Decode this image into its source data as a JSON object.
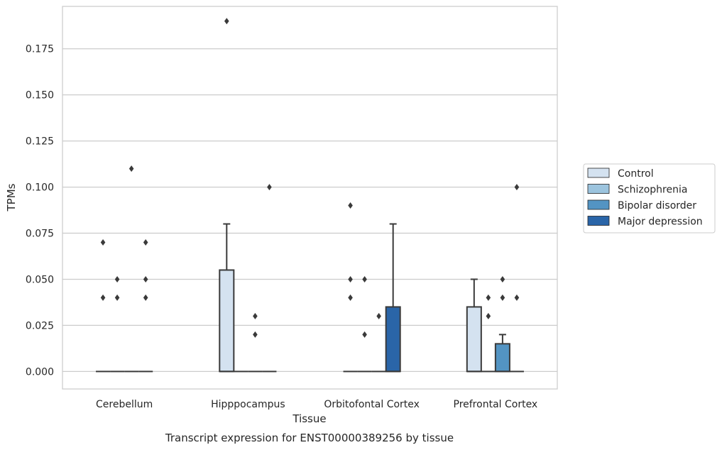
{
  "chart_data": {
    "type": "box",
    "title": "",
    "caption": "Transcript expression for ENST00000389256 by tissue",
    "xlabel": "Tissue",
    "ylabel": "TPMs",
    "ylim": [
      -0.0095,
      0.198
    ],
    "yticks": [
      0.0,
      0.025,
      0.05,
      0.075,
      0.1,
      0.125,
      0.15,
      0.175
    ],
    "ytick_labels": [
      "0.000",
      "0.025",
      "0.050",
      "0.075",
      "0.100",
      "0.125",
      "0.150",
      "0.175"
    ],
    "grid": "y",
    "legend_position": "right",
    "categories": [
      "Cerebellum",
      "Hipppocampus",
      "Orbitofontal Cortex",
      "Prefrontal Cortex"
    ],
    "series": [
      {
        "name": "Control",
        "color": "#d4e2f0"
      },
      {
        "name": "Schizophrenia",
        "color": "#9cc4de"
      },
      {
        "name": "Bipolar disorder",
        "color": "#5394c3"
      },
      {
        "name": "Major depression",
        "color": "#2a65a8"
      }
    ],
    "boxes": [
      {
        "category": "Cerebellum",
        "series": "Control",
        "q1": 0,
        "median": 0,
        "q3": 0,
        "whisker_low": 0,
        "whisker_high": 0,
        "outliers": [
          0.04,
          0.07
        ]
      },
      {
        "category": "Cerebellum",
        "series": "Schizophrenia",
        "q1": 0,
        "median": 0,
        "q3": 0,
        "whisker_low": 0,
        "whisker_high": 0,
        "outliers": [
          0.04,
          0.05
        ]
      },
      {
        "category": "Cerebellum",
        "series": "Bipolar disorder",
        "q1": 0,
        "median": 0,
        "q3": 0,
        "whisker_low": 0,
        "whisker_high": 0,
        "outliers": [
          0.11
        ]
      },
      {
        "category": "Cerebellum",
        "series": "Major depression",
        "q1": 0,
        "median": 0,
        "q3": 0,
        "whisker_low": 0,
        "whisker_high": 0,
        "outliers": [
          0.04,
          0.05,
          0.07
        ]
      },
      {
        "category": "Hipppocampus",
        "series": "Control",
        "q1": 0,
        "median": 0,
        "q3": 0.055,
        "whisker_low": 0,
        "whisker_high": 0.08,
        "outliers": [
          0.19
        ]
      },
      {
        "category": "Hipppocampus",
        "series": "Schizophrenia",
        "q1": 0,
        "median": 0,
        "q3": 0,
        "whisker_low": 0,
        "whisker_high": 0,
        "outliers": []
      },
      {
        "category": "Hipppocampus",
        "series": "Bipolar disorder",
        "q1": 0,
        "median": 0,
        "q3": 0,
        "whisker_low": 0,
        "whisker_high": 0,
        "outliers": [
          0.02,
          0.03
        ]
      },
      {
        "category": "Hipppocampus",
        "series": "Major depression",
        "q1": 0,
        "median": 0,
        "q3": 0,
        "whisker_low": 0,
        "whisker_high": 0,
        "outliers": [
          0.1
        ]
      },
      {
        "category": "Orbitofontal Cortex",
        "series": "Control",
        "q1": 0,
        "median": 0,
        "q3": 0,
        "whisker_low": 0,
        "whisker_high": 0,
        "outliers": [
          0.04,
          0.05,
          0.09
        ]
      },
      {
        "category": "Orbitofontal Cortex",
        "series": "Schizophrenia",
        "q1": 0,
        "median": 0,
        "q3": 0,
        "whisker_low": 0,
        "whisker_high": 0,
        "outliers": [
          0.02,
          0.05
        ]
      },
      {
        "category": "Orbitofontal Cortex",
        "series": "Bipolar disorder",
        "q1": 0,
        "median": 0,
        "q3": 0,
        "whisker_low": 0,
        "whisker_high": 0,
        "outliers": [
          0.03
        ]
      },
      {
        "category": "Orbitofontal Cortex",
        "series": "Major depression",
        "q1": 0,
        "median": 0,
        "q3": 0.035,
        "whisker_low": 0,
        "whisker_high": 0.08,
        "outliers": []
      },
      {
        "category": "Prefrontal Cortex",
        "series": "Control",
        "q1": 0,
        "median": 0,
        "q3": 0.035,
        "whisker_low": 0,
        "whisker_high": 0.05,
        "outliers": []
      },
      {
        "category": "Prefrontal Cortex",
        "series": "Schizophrenia",
        "q1": 0,
        "median": 0,
        "q3": 0,
        "whisker_low": 0,
        "whisker_high": 0,
        "outliers": [
          0.03,
          0.04
        ]
      },
      {
        "category": "Prefrontal Cortex",
        "series": "Bipolar disorder",
        "q1": 0,
        "median": 0,
        "q3": 0.015,
        "whisker_low": 0,
        "whisker_high": 0.02,
        "outliers": [
          0.04,
          0.05
        ]
      },
      {
        "category": "Prefrontal Cortex",
        "series": "Major depression",
        "q1": 0,
        "median": 0,
        "q3": 0,
        "whisker_low": 0,
        "whisker_high": 0,
        "outliers": [
          0.04,
          0.1
        ]
      }
    ]
  }
}
